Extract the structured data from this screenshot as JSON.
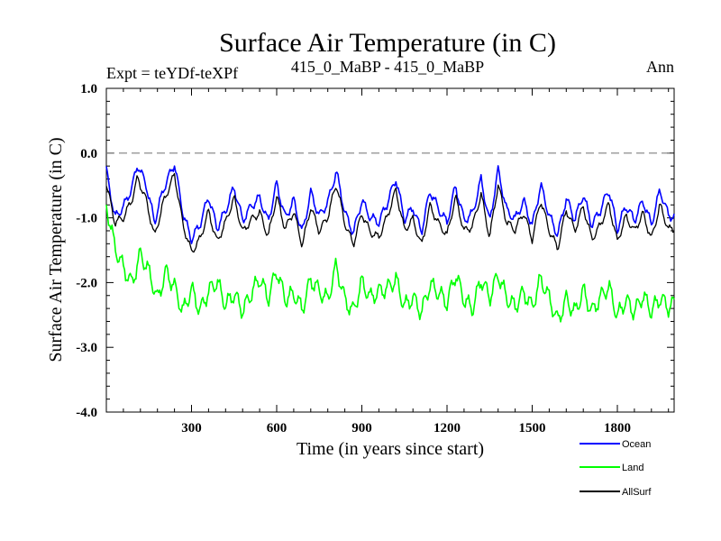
{
  "chart_data": {
    "type": "line",
    "title": "Surface Air Temperature (in C)",
    "subtitle_left": "Expt = teYDf-teXPf",
    "subtitle_center": "415_0_MaBP - 415_0_MaBP",
    "subtitle_right": "Ann",
    "xlabel": "Time (in years since start)",
    "ylabel": "Surface Air Temperature (in C)",
    "xlim": [
      0,
      2000
    ],
    "ylim": [
      -4.0,
      1.0
    ],
    "x_ticks": [
      300,
      600,
      900,
      1200,
      1500,
      1800
    ],
    "x_tick_labels": [
      "300",
      "600",
      "900",
      "1200",
      "1500",
      "1800"
    ],
    "y_ticks": [
      1.0,
      0.0,
      -1.0,
      -2.0,
      -3.0,
      -4.0
    ],
    "y_tick_labels": [
      "1.0",
      "0.0",
      "-1.0",
      "-2.0",
      "-3.0",
      "-4.0"
    ],
    "reference_line": {
      "y": 0.0,
      "style": "dashed",
      "color": "#808080"
    },
    "series": [
      {
        "name": "Ocean",
        "color": "#0000ff",
        "x": [
          0,
          30,
          60,
          90,
          110,
          140,
          170,
          200,
          240,
          270,
          300,
          330,
          360,
          390,
          420,
          450,
          480,
          510,
          540,
          570,
          600,
          630,
          660,
          690,
          720,
          750,
          780,
          810,
          840,
          870,
          900,
          930,
          960,
          990,
          1020,
          1050,
          1080,
          1110,
          1140,
          1170,
          1200,
          1230,
          1260,
          1290,
          1320,
          1350,
          1380,
          1410,
          1440,
          1470,
          1500,
          1530,
          1560,
          1590,
          1620,
          1650,
          1680,
          1710,
          1740,
          1770,
          1800,
          1830,
          1860,
          1890,
          1920,
          1950,
          1980,
          2000
        ],
        "values": [
          -0.3,
          -1.0,
          -0.8,
          -0.5,
          -0.15,
          -0.5,
          -1.1,
          -0.6,
          -0.15,
          -0.9,
          -1.3,
          -1.1,
          -0.7,
          -1.2,
          -0.9,
          -0.5,
          -1.0,
          -0.8,
          -0.7,
          -1.1,
          -0.5,
          -1.0,
          -0.7,
          -1.2,
          -0.6,
          -1.0,
          -0.8,
          -0.3,
          -0.9,
          -1.2,
          -0.7,
          -1.0,
          -1.1,
          -0.8,
          -0.4,
          -1.0,
          -0.8,
          -1.2,
          -0.6,
          -0.9,
          -1.1,
          -0.5,
          -1.0,
          -0.9,
          -0.4,
          -1.1,
          -0.3,
          -0.9,
          -1.0,
          -0.7,
          -1.1,
          -0.5,
          -1.0,
          -1.3,
          -0.7,
          -1.0,
          -0.6,
          -1.1,
          -0.9,
          -0.6,
          -1.2,
          -0.8,
          -1.0,
          -0.7,
          -1.1,
          -0.6,
          -1.0,
          -1.0
        ]
      },
      {
        "name": "Land",
        "color": "#00ff00",
        "x": [
          0,
          30,
          60,
          90,
          120,
          150,
          180,
          210,
          240,
          270,
          300,
          330,
          360,
          390,
          420,
          450,
          480,
          510,
          540,
          570,
          600,
          630,
          660,
          690,
          720,
          750,
          780,
          810,
          840,
          870,
          900,
          930,
          960,
          990,
          1020,
          1050,
          1080,
          1110,
          1140,
          1170,
          1200,
          1230,
          1260,
          1290,
          1320,
          1350,
          1380,
          1410,
          1440,
          1470,
          1500,
          1530,
          1560,
          1590,
          1620,
          1650,
          1680,
          1710,
          1740,
          1770,
          1800,
          1830,
          1860,
          1890,
          1920,
          1950,
          1980,
          2000
        ],
        "values": [
          -0.8,
          -1.4,
          -1.7,
          -2.0,
          -1.6,
          -1.9,
          -2.3,
          -1.8,
          -2.0,
          -2.4,
          -2.1,
          -2.5,
          -2.2,
          -2.0,
          -2.3,
          -2.1,
          -2.4,
          -2.2,
          -2.0,
          -2.3,
          -1.8,
          -2.2,
          -2.1,
          -2.4,
          -2.0,
          -2.2,
          -2.3,
          -1.7,
          -2.2,
          -2.4,
          -2.0,
          -2.3,
          -2.2,
          -2.1,
          -1.9,
          -2.3,
          -2.2,
          -2.5,
          -2.1,
          -2.2,
          -2.3,
          -1.8,
          -2.2,
          -2.4,
          -2.0,
          -2.3,
          -1.9,
          -2.2,
          -2.3,
          -2.1,
          -2.4,
          -2.0,
          -2.3,
          -2.6,
          -2.2,
          -2.4,
          -2.1,
          -2.5,
          -2.3,
          -2.1,
          -2.5,
          -2.2,
          -2.4,
          -2.2,
          -2.5,
          -2.3,
          -2.4,
          -2.3
        ]
      },
      {
        "name": "AllSurf",
        "color": "#000000",
        "x": [
          0,
          30,
          60,
          90,
          110,
          140,
          170,
          200,
          240,
          270,
          300,
          330,
          360,
          390,
          420,
          450,
          480,
          510,
          540,
          570,
          600,
          630,
          660,
          690,
          720,
          750,
          780,
          810,
          840,
          870,
          900,
          930,
          960,
          990,
          1020,
          1050,
          1080,
          1110,
          1140,
          1170,
          1200,
          1230,
          1260,
          1290,
          1320,
          1350,
          1380,
          1410,
          1440,
          1470,
          1500,
          1530,
          1560,
          1590,
          1620,
          1650,
          1680,
          1710,
          1740,
          1770,
          1800,
          1830,
          1860,
          1890,
          1920,
          1950,
          1980,
          2000
        ],
        "values": [
          -0.5,
          -1.1,
          -1.0,
          -0.7,
          -0.35,
          -0.7,
          -1.3,
          -0.8,
          -0.35,
          -1.1,
          -1.5,
          -1.3,
          -0.9,
          -1.4,
          -1.1,
          -0.7,
          -1.2,
          -1.0,
          -0.9,
          -1.3,
          -0.7,
          -1.2,
          -0.9,
          -1.4,
          -0.8,
          -1.2,
          -1.0,
          -0.5,
          -1.1,
          -1.4,
          -0.9,
          -1.2,
          -1.3,
          -1.0,
          -0.6,
          -1.2,
          -1.0,
          -1.4,
          -0.8,
          -1.1,
          -1.3,
          -0.7,
          -1.2,
          -1.1,
          -0.6,
          -1.3,
          -0.5,
          -1.1,
          -1.2,
          -0.9,
          -1.3,
          -0.7,
          -1.2,
          -1.5,
          -0.9,
          -1.2,
          -0.8,
          -1.3,
          -1.1,
          -0.8,
          -1.4,
          -1.0,
          -1.2,
          -0.9,
          -1.3,
          -0.8,
          -1.2,
          -1.2
        ]
      }
    ],
    "legend": [
      "Ocean",
      "Land",
      "AllSurf"
    ],
    "legend_position": "bottom-right",
    "grid": false
  }
}
